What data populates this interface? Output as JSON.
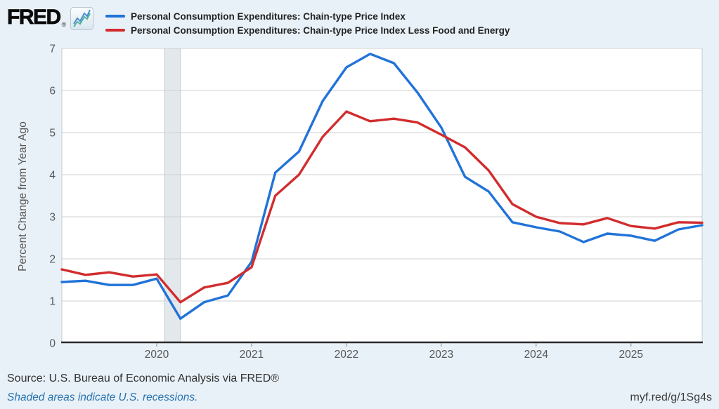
{
  "brand": {
    "name": "FRED",
    "reg": "®"
  },
  "footer": {
    "source": "Source: U.S. Bureau of Economic Analysis via FRED®",
    "recession_note": "Shaded areas indicate U.S. recessions.",
    "short_url": "myf.red/g/1Sg4s"
  },
  "colors": {
    "page_background": "#e9f1f8",
    "plot_background": "#ffffff",
    "gridline": "#d0d0d0",
    "plot_border": "#c5c9cc",
    "axis_line": "#2b2b2b",
    "tick_text": "#575757",
    "recession_band_fill": "#e3e8ec",
    "recession_band_border": "#c6cbcf",
    "series_blue": "#2173d8",
    "series_red": "#d22c2e",
    "link_blue": "#2673af"
  },
  "chart_data": {
    "type": "line",
    "frequency": "Quarterly",
    "title": "",
    "xlabel": "",
    "ylabel": "Percent Change from Year Ago",
    "ylim": [
      0,
      7
    ],
    "y_ticks": [
      0,
      1,
      2,
      3,
      4,
      5,
      6,
      7
    ],
    "x_year_ticks": [
      "2020",
      "2021",
      "2022",
      "2023",
      "2024",
      "2025"
    ],
    "grid": "horizontal",
    "legend_position": "top",
    "recession_band": {
      "start": "2020-02",
      "end": "2020-04"
    },
    "x": [
      "2019 Q1",
      "2019 Q2",
      "2019 Q3",
      "2019 Q4",
      "2020 Q1",
      "2020 Q2",
      "2020 Q3",
      "2020 Q4",
      "2021 Q1",
      "2021 Q2",
      "2021 Q3",
      "2021 Q4",
      "2022 Q1",
      "2022 Q2",
      "2022 Q3",
      "2022 Q4",
      "2023 Q1",
      "2023 Q2",
      "2023 Q3",
      "2023 Q4",
      "2024 Q1",
      "2024 Q2",
      "2024 Q3",
      "2024 Q4",
      "2025 Q1",
      "2025 Q2",
      "2025 Q3",
      "2025 Q4"
    ],
    "series": [
      {
        "name": "Personal Consumption Expenditures: Chain-type Price Index",
        "color": "#2173d8",
        "values": [
          1.45,
          1.48,
          1.38,
          1.38,
          1.53,
          0.58,
          0.97,
          1.13,
          1.93,
          4.05,
          4.55,
          5.75,
          6.55,
          6.87,
          6.65,
          5.95,
          5.12,
          3.95,
          3.6,
          2.87,
          2.75,
          2.65,
          2.4,
          2.6,
          2.55,
          2.43,
          2.7,
          2.8
        ]
      },
      {
        "name": "Personal Consumption Expenditures: Chain-type Price Index Less Food and Energy",
        "color": "#d22c2e",
        "values": [
          1.75,
          1.62,
          1.68,
          1.58,
          1.63,
          0.97,
          1.32,
          1.43,
          1.8,
          3.5,
          4.0,
          4.9,
          5.5,
          5.27,
          5.33,
          5.24,
          4.95,
          4.65,
          4.1,
          3.3,
          3.0,
          2.85,
          2.82,
          2.97,
          2.78,
          2.72,
          2.87,
          2.86
        ]
      }
    ]
  }
}
